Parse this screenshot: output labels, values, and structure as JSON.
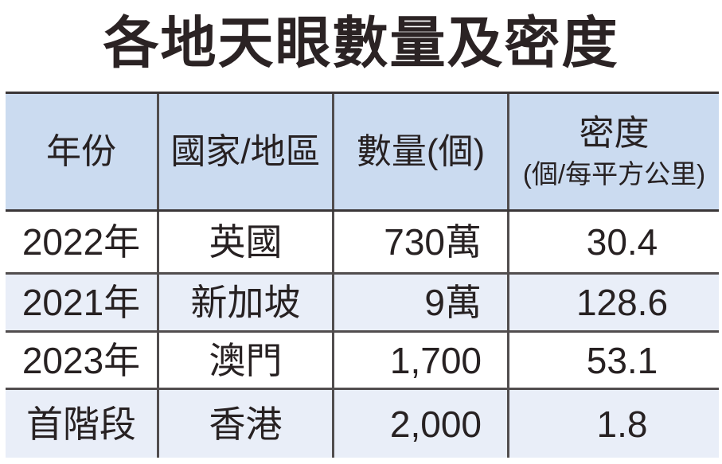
{
  "title": "各地天眼數量及密度",
  "header": {
    "col1": "年份",
    "col2": "國家/地區",
    "col3": "數量(個)",
    "col4_line1": "密度",
    "col4_line2": "(個/每平方公里)"
  },
  "chart_data": {
    "type": "table",
    "title": "各地天眼數量及密度",
    "columns": [
      "年份",
      "國家/地區",
      "數量(個)",
      "密度(個/每平方公里)"
    ],
    "rows": [
      [
        "2022年",
        "英國",
        "730萬",
        "30.4"
      ],
      [
        "2021年",
        "新加坡",
        "9萬",
        "128.6"
      ],
      [
        "2023年",
        "澳門",
        "1,700",
        "53.1"
      ],
      [
        "首階段",
        "香港",
        "2,000",
        "1.8"
      ]
    ]
  },
  "colors": {
    "background": "#ffffff",
    "header_bg": "#cbdbf0",
    "alt_row_bg": "#e9eef8",
    "frame_line": "#3a3637",
    "grid_line": "#514d4e",
    "text": "#272122"
  }
}
